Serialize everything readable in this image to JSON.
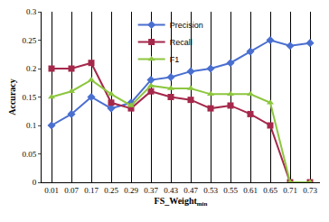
{
  "chart_data": {
    "type": "line",
    "x_label": "FS_Weight",
    "x_label_subscript": "min",
    "y_label": "Accuracy",
    "categories": [
      "0.01",
      "0.07",
      "0.17",
      "0.25",
      "0.29",
      "0.37",
      "0.43",
      "0.47",
      "0.53",
      "0.55",
      "0.61",
      "0.65",
      "0.71",
      "0.73"
    ],
    "series": [
      {
        "name": "Precision",
        "color": "#4a6fd0",
        "marker": "diamond",
        "values": [
          0.1,
          0.12,
          0.15,
          0.13,
          0.14,
          0.18,
          0.185,
          0.195,
          0.2,
          0.21,
          0.23,
          0.25,
          0.24,
          0.245
        ]
      },
      {
        "name": "Recall",
        "color": "#a5284b",
        "marker": "square",
        "values": [
          0.2,
          0.2,
          0.21,
          0.14,
          0.13,
          0.16,
          0.15,
          0.145,
          0.13,
          0.135,
          0.12,
          0.1,
          0,
          0
        ]
      },
      {
        "name": "F1",
        "color": "#8dc63f",
        "marker": "triangle-up",
        "values": [
          0.15,
          0.16,
          0.18,
          0.155,
          0.135,
          0.17,
          0.165,
          0.165,
          0.155,
          0.155,
          0.155,
          0.14,
          0,
          0
        ]
      }
    ],
    "ylim": [
      0,
      0.3
    ],
    "yticks": [
      0,
      0.05,
      0.1,
      0.15,
      0.2,
      0.25,
      0.3
    ],
    "grid": true,
    "legend": "top"
  }
}
